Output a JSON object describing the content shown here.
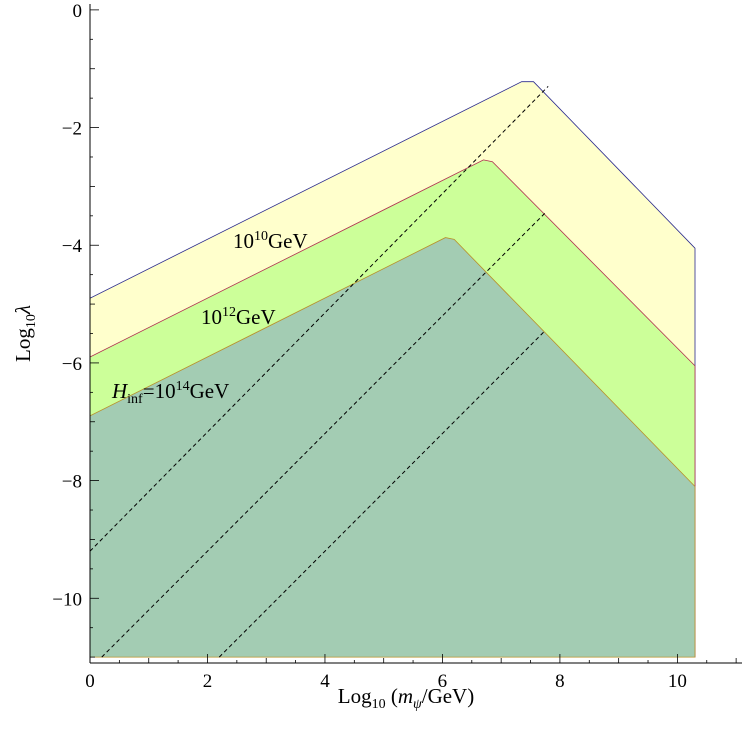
{
  "chart_data": {
    "type": "area",
    "xlabel": "Log10 (mψ/GeV)",
    "ylabel": "Log10λ",
    "xlim": [
      0,
      11.1
    ],
    "ylim": [
      -11.1,
      0.1
    ],
    "x_ticks": [
      0,
      2,
      4,
      6,
      8,
      10
    ],
    "y_ticks": [
      0,
      -2,
      -4,
      -6,
      -8,
      -10
    ],
    "x_tick_labels": [
      "0",
      "2",
      "4",
      "6",
      "8",
      "10"
    ],
    "y_tick_labels": [
      "0",
      "−2",
      "−4",
      "−6",
      "−8",
      "−10"
    ],
    "grid": false,
    "regions": [
      {
        "label": "10^10GeV",
        "fill": "#ffffcc",
        "stroke": "#2b2b8c",
        "upper_boundary": [
          [
            0,
            -4.9
          ],
          [
            7.35,
            -1.22
          ],
          [
            7.55,
            -1.22
          ],
          [
            10.3,
            -4.05
          ],
          [
            10.3,
            -11.0
          ]
        ]
      },
      {
        "label": "10^12GeV",
        "fill": "#ccff99",
        "stroke": "#b03050",
        "upper_boundary": [
          [
            0,
            -5.9
          ],
          [
            6.7,
            -2.55
          ],
          [
            6.85,
            -2.58
          ],
          [
            10.3,
            -6.05
          ],
          [
            10.3,
            -11.0
          ]
        ]
      },
      {
        "label": "Hinf=10^14GeV",
        "fill": "#a3ccb3",
        "stroke": "#b8902a",
        "upper_boundary": [
          [
            0,
            -6.9
          ],
          [
            6.05,
            -3.87
          ],
          [
            6.2,
            -3.9
          ],
          [
            10.3,
            -8.1
          ],
          [
            10.3,
            -11.0
          ]
        ]
      }
    ],
    "lower_bound": -11.0,
    "dashed_lines": [
      [
        [
          0,
          -9.2
        ],
        [
          7.8,
          -1.3
        ]
      ],
      [
        [
          0.2,
          -11.0
        ],
        [
          7.75,
          -3.45
        ]
      ],
      [
        [
          2.2,
          -11.0
        ],
        [
          7.75,
          -5.45
        ]
      ]
    ],
    "annotations": {
      "label_10": {
        "base": "10",
        "sup": "10",
        "unit": "GeV"
      },
      "label_12": {
        "base": "10",
        "sup": "12",
        "unit": "GeV"
      },
      "label_14": {
        "var": "H",
        "sub": "inf",
        "eq": "=10",
        "sup": "14",
        "unit": "GeV"
      }
    },
    "axis_title_parts": {
      "x_prefix": "Log",
      "x_sub": "10",
      "x_var": "m",
      "x_var_sub": "ψ",
      "x_suffix": "/GeV)",
      "x_open": " (",
      "y_prefix": "Log",
      "y_sub": "10",
      "y_var": "λ"
    }
  }
}
